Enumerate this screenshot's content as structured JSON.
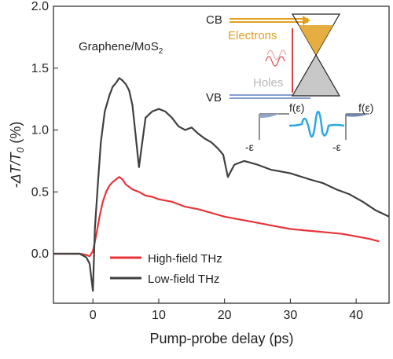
{
  "chart_data": {
    "type": "line",
    "annotation": "Graphene/MoS",
    "annotation_sub": "2",
    "xlabel": "Pump-probe delay (ps)",
    "ylabel_main": "-ΔT/T",
    "ylabel_sub": "0",
    "ylabel_unit": " (%)",
    "xlim": [
      -6,
      45
    ],
    "ylim": [
      -0.4,
      2.0
    ],
    "xticks": [
      0,
      10,
      20,
      30,
      40
    ],
    "yticks": [
      0.0,
      0.5,
      1.0,
      1.5,
      2.0
    ],
    "xtick_labels": [
      "0",
      "10",
      "20",
      "30",
      "40"
    ],
    "ytick_labels": [
      "0.0",
      "0.5",
      "1.0",
      "1.5",
      "2.0"
    ],
    "grid": false,
    "legend_position": "bottom-left",
    "series": [
      {
        "name": "High-field THz",
        "color": "#e8343a",
        "x": [
          -6,
          -4,
          -2,
          -1,
          -0.5,
          0,
          0.5,
          1,
          1.5,
          2,
          2.5,
          3,
          3.5,
          4,
          4.5,
          5,
          6,
          7,
          8,
          9,
          10,
          12,
          14,
          16,
          18,
          20,
          22,
          24,
          26,
          28,
          30,
          32,
          34,
          36,
          38,
          40,
          42,
          43.5
        ],
        "y": [
          0.0,
          0.0,
          0.0,
          -0.01,
          -0.02,
          0.02,
          0.15,
          0.3,
          0.42,
          0.5,
          0.55,
          0.58,
          0.6,
          0.62,
          0.6,
          0.56,
          0.52,
          0.5,
          0.47,
          0.46,
          0.44,
          0.42,
          0.38,
          0.36,
          0.33,
          0.3,
          0.28,
          0.26,
          0.24,
          0.22,
          0.2,
          0.19,
          0.18,
          0.17,
          0.16,
          0.14,
          0.12,
          0.1
        ]
      },
      {
        "name": "Low-field THz",
        "color": "#404040",
        "x": [
          -6,
          -4,
          -2,
          -1,
          -0.5,
          0,
          0.3,
          0.8,
          1.2,
          1.8,
          2.5,
          3,
          3.5,
          4,
          4.5,
          5,
          5.5,
          6,
          6.5,
          7,
          7.5,
          8,
          9,
          10,
          11,
          12,
          13,
          14,
          15,
          16,
          17,
          18,
          19,
          19.8,
          20.5,
          21.5,
          23,
          25,
          27,
          30,
          33,
          35,
          37,
          39,
          41,
          43,
          45
        ],
        "y": [
          0.0,
          0.0,
          0.0,
          -0.03,
          -0.08,
          -0.3,
          0.2,
          0.6,
          0.9,
          1.15,
          1.28,
          1.35,
          1.38,
          1.42,
          1.4,
          1.37,
          1.32,
          1.2,
          0.95,
          0.7,
          0.9,
          1.1,
          1.15,
          1.17,
          1.15,
          1.1,
          1.03,
          1.0,
          1.02,
          0.97,
          0.93,
          0.9,
          0.85,
          0.8,
          0.62,
          0.72,
          0.75,
          0.72,
          0.68,
          0.65,
          0.6,
          0.57,
          0.52,
          0.48,
          0.42,
          0.35,
          0.3
        ]
      }
    ]
  },
  "inset": {
    "cb_label": "CB",
    "vb_label": "VB",
    "electrons_label": "Electrons",
    "holes_label": "Holes",
    "f_label_left": "f(ε)",
    "f_label_right": "f(ε)",
    "eps_label_left": "-ε",
    "eps_label_right": "-ε"
  },
  "colors": {
    "electrons": "#e0a020",
    "holes": "#b0b0b0",
    "thz_pulse": "#2fa8e0",
    "pump_pulse": "#e05050"
  }
}
